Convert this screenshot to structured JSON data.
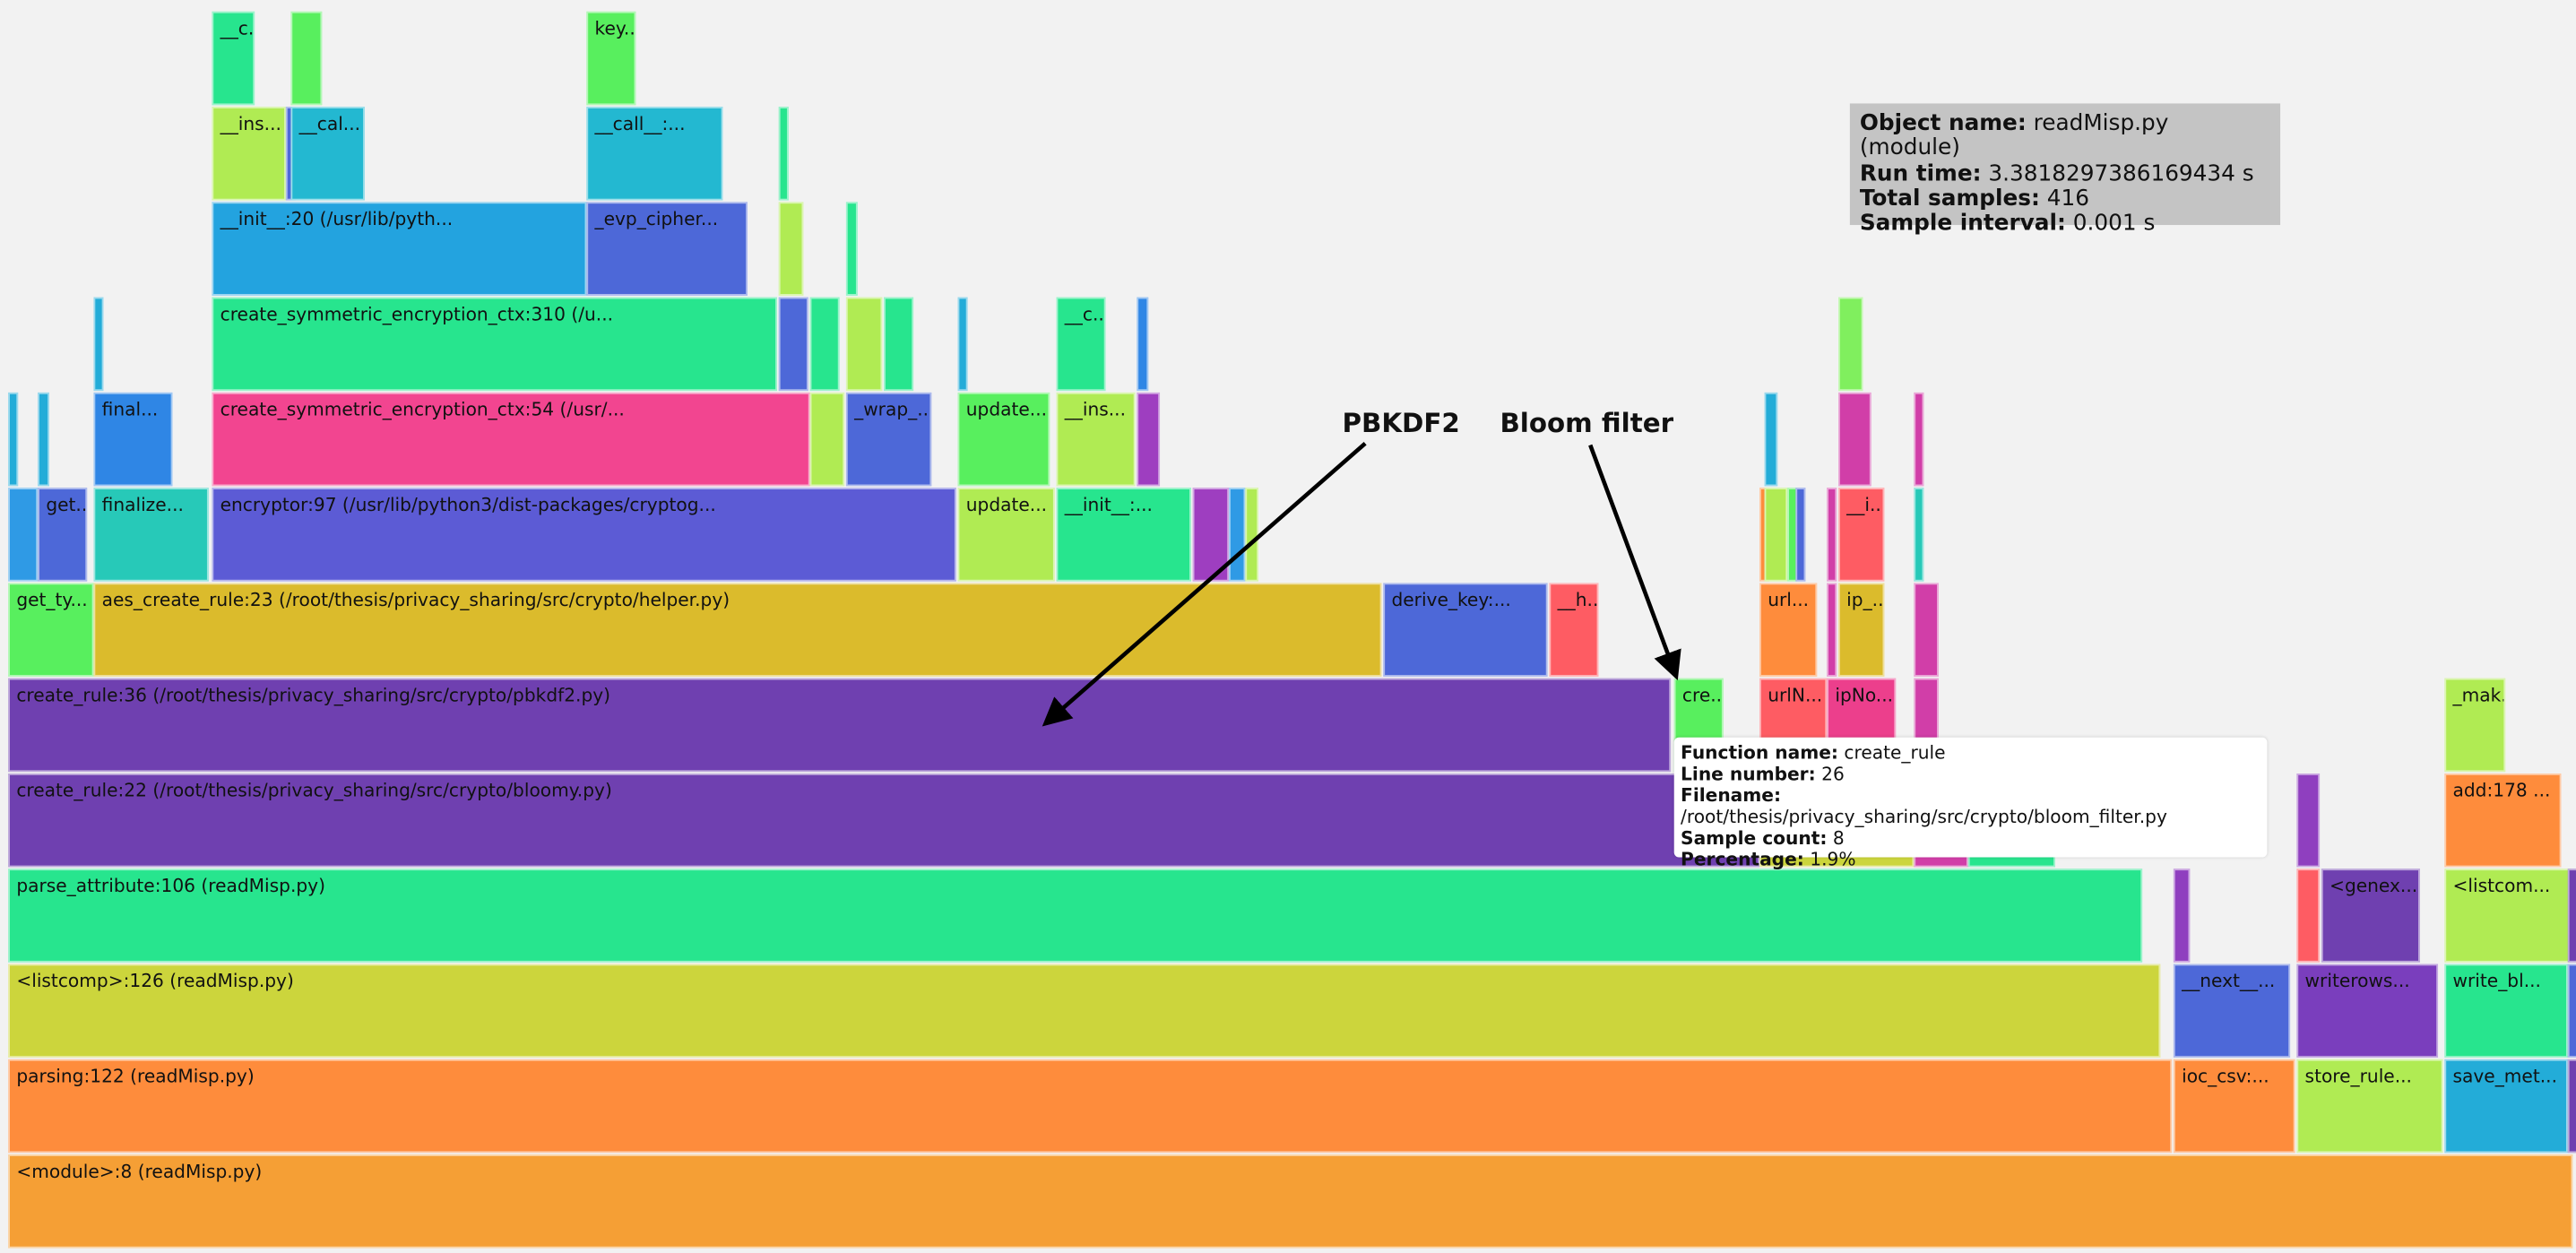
{
  "info": {
    "object_name_label": "Object name:",
    "object_name_value": "readMisp.py (module)",
    "run_time_label": "Run time:",
    "run_time_value": "3.3818297386169434 s",
    "total_samples_label": "Total samples:",
    "total_samples_value": "416",
    "sample_interval_label": "Sample interval:",
    "sample_interval_value": "0.001 s"
  },
  "tooltip": {
    "function_label": "Function name:",
    "function_value": "create_rule",
    "line_label": "Line number:",
    "line_value": "26",
    "filename_label": "Filename:",
    "filename_value": "/root/thesis/privacy_sharing/src/crypto/bloom_filter.py",
    "samples_label": "Sample count:",
    "samples_value": "8",
    "percentage_label": "Percentage:",
    "percentage_value": "1.9%"
  },
  "annotations": {
    "pbkdf2": "PBKDF2",
    "bloom": "Bloom filter"
  },
  "colors": {
    "background": "#f2f2f2",
    "info_box": "#c4c4c4",
    "tooltip": "#ffffff"
  },
  "frames": [
    {
      "label": "<module>:8 (readMisp.py)",
      "color": "#f59f35"
    },
    {
      "label": "parsing:122 (readMisp.py)",
      "color": "#fe8c3c"
    },
    {
      "label": "ioc_csv:...",
      "color": "#fe8c3c"
    },
    {
      "label": "store_rule...",
      "color": "#b0eb53"
    },
    {
      "label": "save_met...",
      "color": "#23acd8"
    },
    {
      "label": "",
      "color": "#6f40b0"
    },
    {
      "label": "<listcomp>:126 (readMisp.py)",
      "color": "#ccd53c"
    },
    {
      "label": "__next__...",
      "color": "#4d68d8"
    },
    {
      "label": "writerows...",
      "color": "#7a3ebd"
    },
    {
      "label": "write_bl...",
      "color": "#27e58e"
    },
    {
      "label": "",
      "color": "#4d68d8"
    },
    {
      "label": "parse_attribute:106 (readMisp.py)",
      "color": "#27e58e"
    },
    {
      "label": "",
      "color": "#8f3fbf"
    },
    {
      "label": "",
      "color": "#fe5c63"
    },
    {
      "label": "<genex...",
      "color": "#6f40b0"
    },
    {
      "label": "<listcom...",
      "color": "#b0eb53"
    },
    {
      "label": "",
      "color": "#6f40b0"
    },
    {
      "label": "create_rule:22 (/root/thesis/privacy_sharing/src/crypto/bloomy.py)",
      "color": "#6f40b0"
    },
    {
      "label": "",
      "color": "#ccd53c"
    },
    {
      "label": "",
      "color": "#d13ea8"
    },
    {
      "label": "",
      "color": "#27e58e"
    },
    {
      "label": "",
      "color": "#8f3fbf"
    },
    {
      "label": "add:178 ...",
      "color": "#fe8c3c"
    },
    {
      "label": "create_rule:36 (/root/thesis/privacy_sharing/src/crypto/pbkdf2.py)",
      "color": "#6f40b0"
    },
    {
      "label": "cre...",
      "color": "#58ef5e"
    },
    {
      "label": "urlN...",
      "color": "#fe5c63"
    },
    {
      "label": "ipNo...",
      "color": "#ec3f8c"
    },
    {
      "label": "",
      "color": "#d13ea8"
    },
    {
      "label": "_mak...",
      "color": "#b0eb53"
    },
    {
      "label": "get_ty...",
      "color": "#58ef5e"
    },
    {
      "label": "aes_create_rule:23 (/root/thesis/privacy_sharing/src/crypto/helper.py)",
      "color": "#dbbb2c"
    },
    {
      "label": "derive_key:...",
      "color": "#4d68d8"
    },
    {
      "label": "__h...",
      "color": "#fe5c63"
    },
    {
      "label": "url...",
      "color": "#fe8c3c"
    },
    {
      "label": "",
      "color": "#d13ea8"
    },
    {
      "label": "ip_...",
      "color": "#dbbb2c"
    },
    {
      "label": "",
      "color": "#d13ea8"
    },
    {
      "label": "",
      "color": "#2f9ae5"
    },
    {
      "label": "get...",
      "color": "#4d68d8"
    },
    {
      "label": "finalize...",
      "color": "#27c9b8"
    },
    {
      "label": "encryptor:97 (/usr/lib/python3/dist-packages/cryptog...",
      "color": "#5c5bd5"
    },
    {
      "label": "update...",
      "color": "#b0eb53"
    },
    {
      "label": "__init__:...",
      "color": "#27e58e"
    },
    {
      "label": "",
      "color": "#9e3ec0"
    },
    {
      "label": "",
      "color": "#2f9ae5"
    },
    {
      "label": "",
      "color": "#b0eb53"
    },
    {
      "label": "",
      "color": "#fe8c3c"
    },
    {
      "label": "",
      "color": "#b0eb53"
    },
    {
      "label": "",
      "color": "#58ef5e"
    },
    {
      "label": "",
      "color": "#4d68d8"
    },
    {
      "label": "",
      "color": "#d13ea8"
    },
    {
      "label": "__i...",
      "color": "#fe5c63"
    },
    {
      "label": "",
      "color": "#27c9b8"
    },
    {
      "label": "",
      "color": "#23acd8"
    },
    {
      "label": "",
      "color": "#23acd8"
    },
    {
      "label": "final...",
      "color": "#2f86e5"
    },
    {
      "label": "create_symmetric_encryption_ctx:54 (/usr/...",
      "color": "#f24590"
    },
    {
      "label": "",
      "color": "#b0eb53"
    },
    {
      "label": "_wrap_...",
      "color": "#4d68d8"
    },
    {
      "label": "update...",
      "color": "#58ef5e"
    },
    {
      "label": "__ins...",
      "color": "#b0eb53"
    },
    {
      "label": "",
      "color": "#9e3ec0"
    },
    {
      "label": "",
      "color": "#23acd8"
    },
    {
      "label": "",
      "color": "#d13ea8"
    },
    {
      "label": "",
      "color": "#d13ea8"
    },
    {
      "label": "",
      "color": "#23acd8"
    },
    {
      "label": "create_symmetric_encryption_ctx:310 (/u...",
      "color": "#27e58e"
    },
    {
      "label": "",
      "color": "#4d68d8"
    },
    {
      "label": "",
      "color": "#27e58e"
    },
    {
      "label": "",
      "color": "#b0eb53"
    },
    {
      "label": "",
      "color": "#27e58e"
    },
    {
      "label": "",
      "color": "#23acd8"
    },
    {
      "label": "__c...",
      "color": "#27e58e"
    },
    {
      "label": "",
      "color": "#2f86e5"
    },
    {
      "label": "",
      "color": "#80ef5e"
    },
    {
      "label": "__init__:20 (/usr/lib/pyth...",
      "color": "#23a3df"
    },
    {
      "label": "_evp_cipher...",
      "color": "#4d68d8"
    },
    {
      "label": "",
      "color": "#b0eb53"
    },
    {
      "label": "",
      "color": "#27e58e"
    },
    {
      "label": "__ins...",
      "color": "#b0eb53"
    },
    {
      "label": "",
      "color": "#4d68d8"
    },
    {
      "label": "__cal...",
      "color": "#23b8d1"
    },
    {
      "label": "__call__:...",
      "color": "#23b8d1"
    },
    {
      "label": "",
      "color": "#27e58e"
    },
    {
      "label": "__c...",
      "color": "#27e58e"
    },
    {
      "label": "",
      "color": "#58ef5e"
    },
    {
      "label": "key...",
      "color": "#58ef5e"
    }
  ]
}
